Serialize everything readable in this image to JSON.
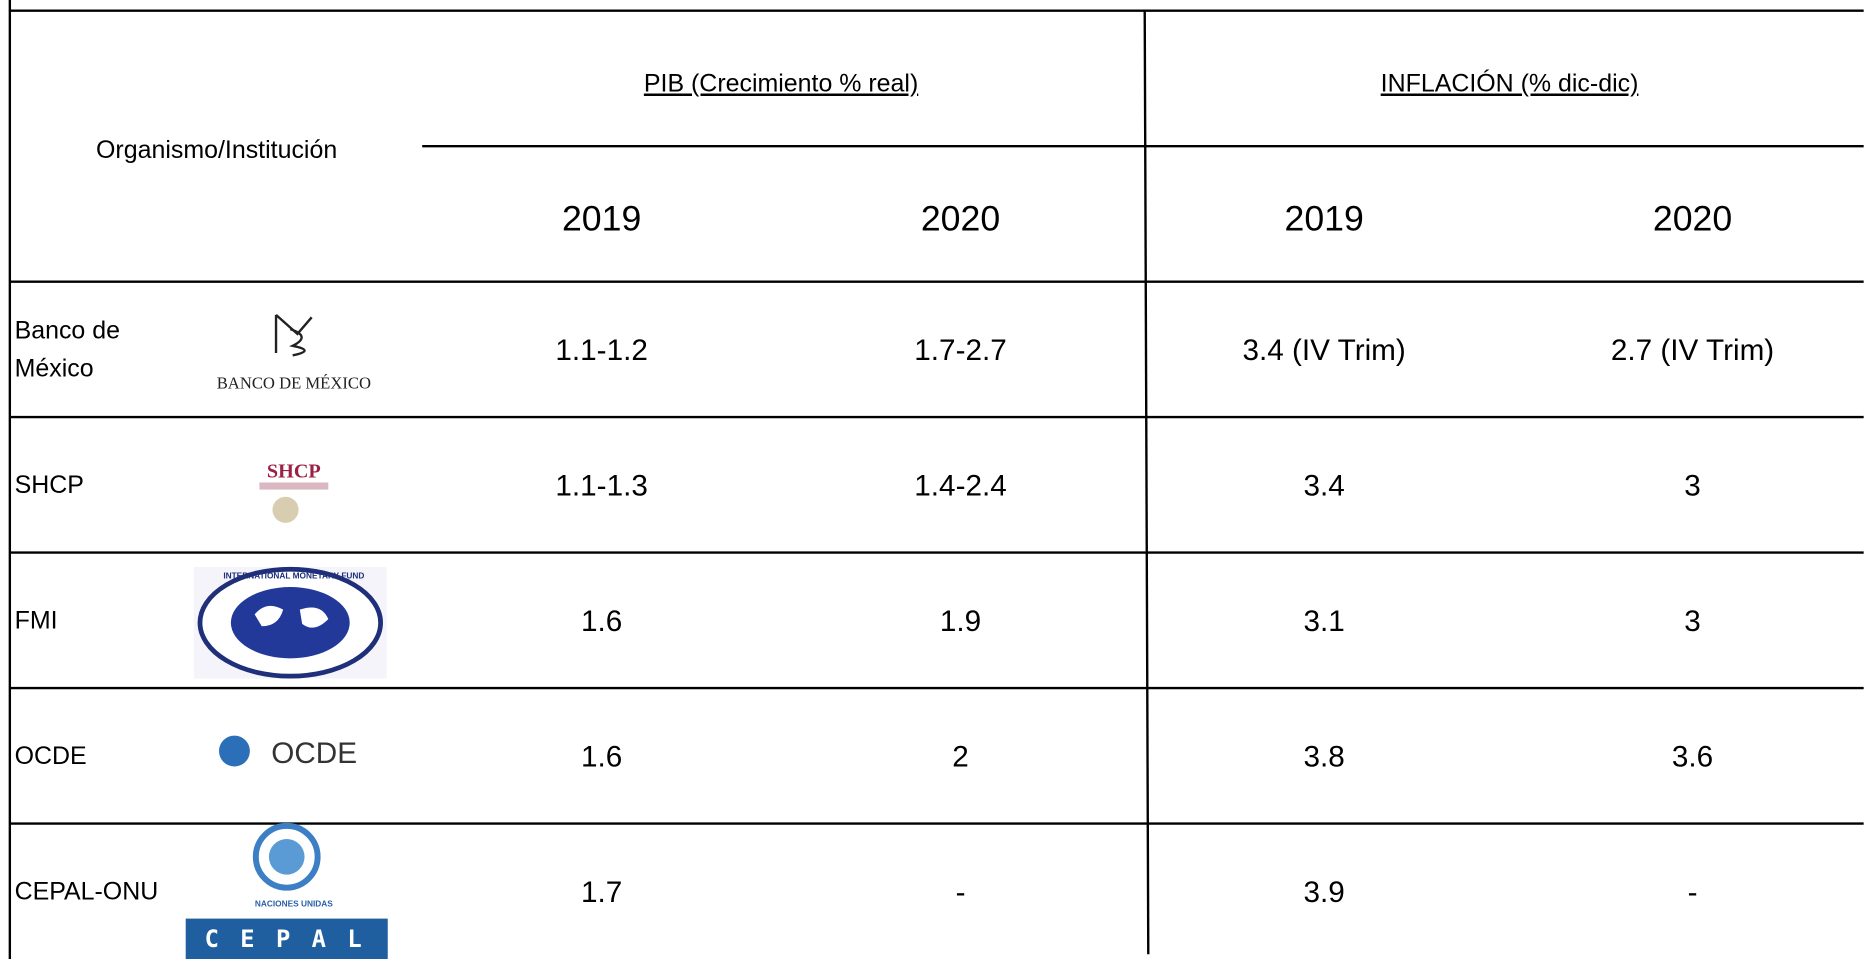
{
  "header": {
    "col_label": "Organismo/Institución",
    "groups": [
      "PIB (Crecimiento % real)",
      "INFLACIÓN (% dic-dic)"
    ],
    "years": [
      "2019",
      "2020",
      "2019",
      "2020"
    ]
  },
  "rows": [
    {
      "name": [
        "Banco de",
        "México"
      ],
      "logo": "BANCO DE MÉXICO",
      "cells": [
        "1.1-1.2",
        "1.7-2.7",
        "3.4 (IV Trim)",
        "2.7 (IV Trim)"
      ]
    },
    {
      "name": [
        "SHCP"
      ],
      "logo": "SHCP",
      "cells": [
        "1.1-1.3",
        "1.4-2.4",
        "3.4",
        "3"
      ]
    },
    {
      "name": [
        "FMI"
      ],
      "logo": "INTERNATIONAL MONETARY FUND",
      "cells": [
        "1.6",
        "1.9",
        "3.1",
        "3"
      ]
    },
    {
      "name": [
        "OCDE"
      ],
      "logo": "OCDE",
      "cells": [
        "1.6",
        "2",
        "3.8",
        "3.6"
      ]
    },
    {
      "name": [
        "CEPAL-ONU"
      ],
      "logo": "CEPAL",
      "logo_sub": "NACIONES UNIDAS",
      "cells": [
        "1.7",
        "-",
        "3.9",
        "-"
      ]
    }
  ]
}
